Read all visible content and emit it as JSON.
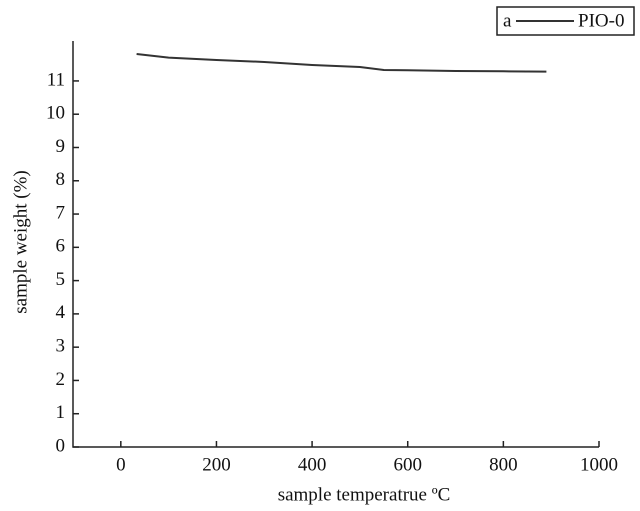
{
  "chart_data": {
    "type": "line",
    "panel_label": "a",
    "x_label": "sample temperatrue ºC",
    "y_label": "sample weight (%)",
    "x": [
      33,
      100,
      200,
      300,
      400,
      500,
      550,
      600,
      700,
      800,
      890
    ],
    "series": [
      {
        "name": "PIO-0",
        "color": "#333333",
        "values": [
          11.81,
          11.7,
          11.63,
          11.57,
          11.48,
          11.42,
          11.33,
          11.32,
          11.3,
          11.29,
          11.28
        ]
      }
    ],
    "xlim": [
      -100,
      1000
    ],
    "xticks": [
      0,
      200,
      400,
      600,
      800,
      1000
    ],
    "ylim": [
      0,
      12.2
    ],
    "yticks": [
      0,
      1,
      2,
      3,
      4,
      5,
      6,
      7,
      8,
      9,
      10,
      11
    ],
    "grid": false,
    "legend": "top-right"
  }
}
